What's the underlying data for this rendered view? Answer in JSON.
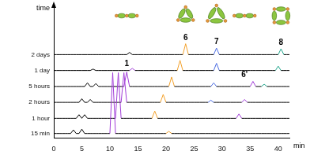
{
  "chart_data": {
    "type": "line",
    "x_label": "min",
    "y_label": "time",
    "x": [
      0,
      0.5,
      1,
      1.5,
      2,
      2.5,
      3,
      3.5,
      4,
      4.5,
      5,
      5.5,
      6,
      6.5,
      7,
      7.5,
      8,
      8.5,
      9,
      9.5,
      10,
      10.5,
      11,
      11.5,
      12,
      12.5,
      13,
      13.5,
      14,
      14.5,
      15,
      15.5,
      16,
      16.5,
      17,
      17.5,
      18,
      18.5,
      19,
      19.5,
      20,
      20.5,
      21,
      21.5,
      22,
      22.5,
      23,
      23.5,
      24,
      24.5,
      25,
      25.5,
      26,
      26.5,
      27,
      27.5,
      28,
      28.5,
      29,
      29.5,
      30,
      30.5,
      31,
      31.5,
      32,
      32.5,
      33,
      33.5,
      34,
      34.5,
      35,
      35.5,
      36,
      36.5,
      37,
      37.5,
      38,
      38.5,
      39,
      39.5,
      40,
      40.5,
      41,
      41.5,
      42
    ],
    "xlim": [
      0,
      42
    ],
    "xticks": [
      0,
      5,
      10,
      15,
      20,
      25,
      30,
      35,
      40
    ],
    "ylim": [
      0,
      185
    ],
    "grid": false,
    "tick_labels": "x",
    "series": [
      {
        "name": "15 min",
        "color": "#000",
        "values": [
          6,
          6,
          6,
          6,
          6,
          6,
          6,
          11,
          6,
          6,
          12,
          6,
          6,
          6,
          6,
          6,
          6,
          6,
          6,
          6,
          6,
          90,
          6,
          6,
          6,
          6,
          6,
          6,
          6,
          6,
          6,
          6,
          6,
          6,
          6,
          6,
          6,
          6,
          6,
          6,
          6,
          9,
          6,
          6,
          6,
          6,
          6,
          6,
          6,
          6,
          6,
          6,
          6,
          6,
          6,
          6,
          6,
          6,
          6,
          6,
          6,
          6,
          6,
          6,
          6,
          6,
          6,
          6,
          6,
          6,
          6,
          6,
          6,
          6,
          6,
          6,
          6,
          6,
          6,
          6,
          6,
          6,
          6,
          6,
          6
        ],
        "colors": [
          "#000",
          "#000",
          "#000",
          "#000",
          "#000",
          "#000",
          "#000",
          "#000",
          "#000",
          "#000",
          "#000",
          "#000",
          "#000",
          "#000",
          "#000",
          "#000",
          "#000",
          "#000",
          "#000",
          "#000",
          "#000",
          "#a23fd8",
          "#000",
          "#000",
          "#000",
          "#000",
          "#000",
          "#000",
          "#000",
          "#000",
          "#000",
          "#000",
          "#000",
          "#000",
          "#000",
          "#000",
          "#000",
          "#000",
          "#000",
          "#000",
          "#000",
          "#f3a12b",
          "#000",
          "#000",
          "#000",
          "#000",
          "#000",
          "#000",
          "#000",
          "#000",
          "#000",
          "#000",
          "#000",
          "#000",
          "#000",
          "#000",
          "#000",
          "#000",
          "#000",
          "#000",
          "#000",
          "#000",
          "#000",
          "#000",
          "#000",
          "#000",
          "#000",
          "#000",
          "#000",
          "#000",
          "#000",
          "#000",
          "#000",
          "#000",
          "#000",
          "#000",
          "#000",
          "#000",
          "#000",
          "#000",
          "#000",
          "#000",
          "#000",
          "#000",
          "#000"
        ]
      },
      {
        "name": "1 hour",
        "color": "#000",
        "values": [
          27,
          27,
          27,
          27,
          27,
          27,
          27,
          27,
          27,
          32,
          27,
          32,
          27,
          27,
          27,
          27,
          27,
          27,
          27,
          27,
          27,
          27,
          27,
          90,
          27,
          27,
          27,
          27,
          27,
          27,
          27,
          27,
          27,
          27,
          27,
          27,
          37,
          27,
          27,
          27,
          27,
          27,
          27,
          27,
          27,
          27,
          27,
          27,
          27,
          27,
          27,
          27,
          27,
          27,
          27,
          27,
          27,
          27,
          27,
          27,
          27,
          27,
          27,
          27,
          27,
          27,
          33,
          27,
          27,
          27,
          27,
          27,
          27,
          27,
          27,
          27,
          27,
          27,
          27,
          27,
          27,
          27,
          27,
          27,
          27
        ],
        "colors": [
          "#000",
          "#000",
          "#000",
          "#000",
          "#000",
          "#000",
          "#000",
          "#000",
          "#000",
          "#000",
          "#000",
          "#000",
          "#000",
          "#000",
          "#000",
          "#000",
          "#000",
          "#000",
          "#000",
          "#000",
          "#000",
          "#000",
          "#000",
          "#a23fd8",
          "#000",
          "#000",
          "#000",
          "#000",
          "#000",
          "#000",
          "#000",
          "#000",
          "#000",
          "#000",
          "#000",
          "#000",
          "#f3a12b",
          "#000",
          "#000",
          "#000",
          "#000",
          "#000",
          "#000",
          "#000",
          "#000",
          "#000",
          "#000",
          "#000",
          "#000",
          "#000",
          "#000",
          "#000",
          "#000",
          "#000",
          "#000",
          "#000",
          "#000",
          "#000",
          "#000",
          "#000",
          "#000",
          "#000",
          "#000",
          "#000",
          "#000",
          "#000",
          "#a23fd8",
          "#000",
          "#000",
          "#000",
          "#000",
          "#000",
          "#000",
          "#000",
          "#000",
          "#000",
          "#000",
          "#000",
          "#000",
          "#000",
          "#000",
          "#000",
          "#000",
          "#000",
          "#000"
        ]
      },
      {
        "name": "2 hours",
        "color": "#000",
        "values": [
          49,
          49,
          49,
          49,
          49,
          49,
          49,
          49,
          49,
          49,
          54,
          49,
          49,
          53,
          49,
          49,
          49,
          49,
          49,
          49,
          49,
          49,
          49,
          49,
          49,
          90,
          49,
          49,
          49,
          49,
          49,
          49,
          49,
          49,
          49,
          49,
          49,
          49,
          49,
          60,
          49,
          49,
          49,
          49,
          49,
          49,
          49,
          49,
          49,
          49,
          49,
          49,
          49,
          49,
          49,
          49,
          52,
          49,
          49,
          49,
          49,
          49,
          49,
          49,
          49,
          49,
          49,
          49,
          53,
          49,
          49,
          49,
          49,
          49,
          49,
          49,
          49,
          49,
          49,
          49,
          49,
          49,
          49,
          49,
          49
        ],
        "colors": [
          "#000",
          "#000",
          "#000",
          "#000",
          "#000",
          "#000",
          "#000",
          "#000",
          "#000",
          "#000",
          "#000",
          "#000",
          "#000",
          "#000",
          "#000",
          "#000",
          "#000",
          "#000",
          "#000",
          "#000",
          "#000",
          "#000",
          "#000",
          "#000",
          "#000",
          "#a23fd8",
          "#000",
          "#000",
          "#000",
          "#000",
          "#000",
          "#000",
          "#000",
          "#000",
          "#000",
          "#000",
          "#000",
          "#000",
          "#000",
          "#f3a12b",
          "#000",
          "#000",
          "#000",
          "#000",
          "#000",
          "#000",
          "#000",
          "#000",
          "#000",
          "#000",
          "#000",
          "#000",
          "#000",
          "#000",
          "#000",
          "#000",
          "#4d6ee3",
          "#000",
          "#000",
          "#000",
          "#000",
          "#000",
          "#000",
          "#000",
          "#000",
          "#000",
          "#000",
          "#000",
          "#a23fd8",
          "#000",
          "#000",
          "#000",
          "#000",
          "#000",
          "#000",
          "#000",
          "#000",
          "#000",
          "#000",
          "#000",
          "#000",
          "#000",
          "#000",
          "#000",
          "#000"
        ]
      },
      {
        "name": "5 hours",
        "color": "#000",
        "values": [
          71,
          71,
          71,
          71,
          71,
          71,
          71,
          71,
          71,
          71,
          71,
          71,
          76,
          71,
          71,
          75,
          71,
          71,
          71,
          71,
          71,
          71,
          71,
          71,
          71,
          71,
          91,
          71,
          71,
          71,
          71,
          71,
          71,
          71,
          71,
          71,
          71,
          71,
          71,
          71,
          71,
          71,
          84,
          71,
          71,
          71,
          71,
          71,
          71,
          71,
          71,
          71,
          71,
          71,
          71,
          71,
          71,
          76,
          71,
          71,
          71,
          71,
          71,
          71,
          71,
          71,
          71,
          71,
          71,
          71,
          71,
          78,
          71,
          71,
          71,
          74,
          71,
          71,
          71,
          71,
          71,
          71,
          71,
          71,
          71
        ],
        "colors": [
          "#000",
          "#000",
          "#000",
          "#000",
          "#000",
          "#000",
          "#000",
          "#000",
          "#000",
          "#000",
          "#000",
          "#000",
          "#000",
          "#000",
          "#000",
          "#000",
          "#000",
          "#000",
          "#000",
          "#000",
          "#000",
          "#000",
          "#000",
          "#000",
          "#000",
          "#000",
          "#a23fd8",
          "#000",
          "#000",
          "#000",
          "#000",
          "#000",
          "#000",
          "#000",
          "#000",
          "#000",
          "#000",
          "#000",
          "#000",
          "#000",
          "#000",
          "#000",
          "#f3a12b",
          "#000",
          "#000",
          "#000",
          "#000",
          "#000",
          "#000",
          "#000",
          "#000",
          "#000",
          "#000",
          "#000",
          "#000",
          "#000",
          "#000",
          "#4d6ee3",
          "#000",
          "#000",
          "#000",
          "#000",
          "#000",
          "#000",
          "#000",
          "#000",
          "#000",
          "#000",
          "#000",
          "#000",
          "#000",
          "#a23fd8",
          "#000",
          "#000",
          "#000",
          "#21a58c",
          "#000",
          "#000",
          "#000",
          "#000",
          "#000",
          "#000",
          "#000",
          "#000",
          "#000"
        ]
      },
      {
        "name": "1 day",
        "color": "#000",
        "values": [
          93,
          93,
          93,
          93,
          93,
          93,
          93,
          93,
          93,
          93,
          93,
          93,
          93,
          93,
          95,
          93,
          93,
          93,
          93,
          93,
          93,
          93,
          93,
          93,
          93,
          93,
          93,
          93,
          96,
          93,
          93,
          93,
          93,
          93,
          93,
          93,
          93,
          93,
          93,
          93,
          93,
          93,
          93,
          93,
          93,
          107,
          93,
          93,
          93,
          93,
          93,
          93,
          93,
          93,
          93,
          93,
          93,
          93,
          103,
          93,
          93,
          93,
          93,
          93,
          93,
          93,
          93,
          93,
          93,
          93,
          93,
          93,
          93,
          93,
          93,
          93,
          93,
          93,
          93,
          93,
          99,
          93,
          93,
          93,
          93
        ],
        "colors": [
          "#000",
          "#000",
          "#000",
          "#000",
          "#000",
          "#000",
          "#000",
          "#000",
          "#000",
          "#000",
          "#000",
          "#000",
          "#000",
          "#000",
          "#000",
          "#000",
          "#000",
          "#000",
          "#000",
          "#000",
          "#000",
          "#000",
          "#000",
          "#000",
          "#000",
          "#000",
          "#000",
          "#000",
          "#a23fd8",
          "#000",
          "#000",
          "#000",
          "#000",
          "#000",
          "#000",
          "#000",
          "#000",
          "#000",
          "#000",
          "#000",
          "#000",
          "#000",
          "#000",
          "#000",
          "#000",
          "#f3a12b",
          "#000",
          "#000",
          "#000",
          "#000",
          "#000",
          "#000",
          "#000",
          "#000",
          "#000",
          "#000",
          "#000",
          "#000",
          "#4d6ee3",
          "#000",
          "#000",
          "#000",
          "#000",
          "#000",
          "#000",
          "#000",
          "#000",
          "#000",
          "#000",
          "#000",
          "#000",
          "#000",
          "#000",
          "#000",
          "#000",
          "#000",
          "#000",
          "#000",
          "#000",
          "#000",
          "#21a58c",
          "#000",
          "#000",
          "#000",
          "#000"
        ]
      },
      {
        "name": "2 days",
        "color": "#000",
        "values": [
          115,
          115,
          115,
          115,
          115,
          115,
          115,
          115,
          115,
          115,
          115,
          115,
          115,
          115,
          115,
          115,
          115,
          115,
          115,
          115,
          115,
          115,
          115,
          115,
          115,
          115,
          115,
          118,
          115,
          115,
          115,
          115,
          115,
          115,
          115,
          115,
          115,
          115,
          115,
          115,
          115,
          115,
          115,
          115,
          115,
          115,
          115,
          130,
          115,
          115,
          115,
          115,
          115,
          115,
          115,
          115,
          115,
          115,
          124,
          115,
          115,
          115,
          115,
          115,
          115,
          115,
          115,
          115,
          115,
          115,
          115,
          115,
          115,
          115,
          115,
          115,
          115,
          115,
          115,
          115,
          115,
          123,
          115,
          115,
          115
        ],
        "colors": [
          "#000",
          "#000",
          "#000",
          "#000",
          "#000",
          "#000",
          "#000",
          "#000",
          "#000",
          "#000",
          "#000",
          "#000",
          "#000",
          "#000",
          "#000",
          "#000",
          "#000",
          "#000",
          "#000",
          "#000",
          "#000",
          "#000",
          "#000",
          "#000",
          "#000",
          "#000",
          "#000",
          "#000",
          "#000",
          "#000",
          "#000",
          "#000",
          "#000",
          "#000",
          "#000",
          "#000",
          "#000",
          "#000",
          "#000",
          "#000",
          "#000",
          "#000",
          "#000",
          "#000",
          "#000",
          "#000",
          "#000",
          "#f3a12b",
          "#000",
          "#000",
          "#000",
          "#000",
          "#000",
          "#000",
          "#000",
          "#000",
          "#000",
          "#000",
          "#4d6ee3",
          "#000",
          "#000",
          "#000",
          "#000",
          "#000",
          "#000",
          "#000",
          "#000",
          "#000",
          "#000",
          "#000",
          "#000",
          "#000",
          "#000",
          "#000",
          "#000",
          "#000",
          "#000",
          "#000",
          "#000",
          "#000",
          "#000",
          "#21a58c",
          "#000",
          "#000",
          "#000"
        ]
      }
    ],
    "annotations": [
      {
        "text": "1",
        "x": 13,
        "y": 97
      },
      {
        "text": "6",
        "x": 23.5,
        "y": 133
      },
      {
        "text": "7",
        "x": 29,
        "y": 127
      },
      {
        "text": "6'",
        "x": 34,
        "y": 82
      },
      {
        "text": "8",
        "x": 40.5,
        "y": 126
      }
    ]
  }
}
